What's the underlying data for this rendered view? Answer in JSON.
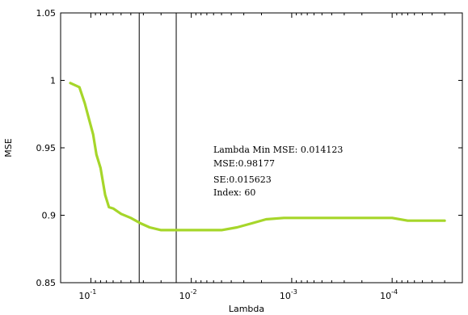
{
  "chart_data": {
    "type": "line",
    "title": "",
    "xlabel": "Lambda",
    "ylabel": "MSE",
    "x_scale": "log",
    "x_reversed": true,
    "xlim": [
      0.2,
      2e-05
    ],
    "ylim": [
      0.85,
      1.05
    ],
    "x_ticks": [
      {
        "value": 0.1,
        "base": "10",
        "exp": "-1"
      },
      {
        "value": 0.01,
        "base": "10",
        "exp": "-2"
      },
      {
        "value": 0.001,
        "base": "10",
        "exp": "-3"
      },
      {
        "value": 0.0001,
        "base": "10",
        "exp": "-4"
      }
    ],
    "y_ticks": [
      {
        "value": 0.85,
        "label": "0.85"
      },
      {
        "value": 0.9,
        "label": "0.9"
      },
      {
        "value": 0.95,
        "label": "0.95"
      },
      {
        "value": 1,
        "label": "1"
      },
      {
        "value": 1.05,
        "label": "1.05"
      }
    ],
    "grid": false,
    "series": [
      {
        "color": "#a6d62a",
        "x": [
          0.16,
          0.13,
          0.115,
          0.105,
          0.095,
          0.088,
          0.08,
          0.072,
          0.066,
          0.06,
          0.05,
          0.04,
          0.032,
          0.026,
          0.02,
          0.014,
          0.01,
          0.007,
          0.005,
          0.0035,
          0.0025,
          0.0018,
          0.0012,
          0.0008,
          0.0005,
          0.0003,
          0.00015,
          0.0001,
          7e-05,
          5e-05,
          4e-05,
          3e-05
        ],
        "y": [
          0.998,
          0.995,
          0.983,
          0.972,
          0.96,
          0.945,
          0.935,
          0.915,
          0.906,
          0.905,
          0.901,
          0.898,
          0.894,
          0.891,
          0.889,
          0.889,
          0.889,
          0.889,
          0.889,
          0.891,
          0.894,
          0.897,
          0.898,
          0.898,
          0.898,
          0.898,
          0.898,
          0.898,
          0.896,
          0.896,
          0.896,
          0.896
        ]
      }
    ],
    "vertical_lines": [
      0.033,
      0.014123
    ],
    "annotations": [
      {
        "text": "Lambda Min MSE: 0.014123"
      },
      {
        "text": "MSE:0.98177"
      },
      {
        "text": "SE:0.015623"
      },
      {
        "text": "Index: 60"
      }
    ]
  }
}
